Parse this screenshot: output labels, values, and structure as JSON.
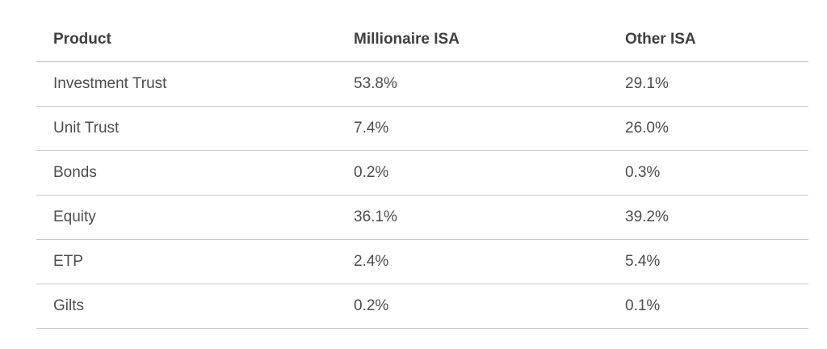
{
  "table": {
    "headers": [
      "Product",
      "Millionaire ISA",
      "Other ISA"
    ],
    "rows": [
      [
        "Investment Trust",
        "53.8%",
        "29.1%"
      ],
      [
        "Unit Trust",
        "7.4%",
        "26.0%"
      ],
      [
        "Bonds",
        "0.2%",
        "0.3%"
      ],
      [
        "Equity",
        "36.1%",
        "39.2%"
      ],
      [
        "ETP",
        "2.4%",
        "5.4%"
      ],
      [
        "Gilts",
        "0.2%",
        "0.1%"
      ]
    ]
  },
  "colors": {
    "text": "#4a4a4a",
    "header_text": "#404040",
    "divider": "#c9c9c9"
  }
}
